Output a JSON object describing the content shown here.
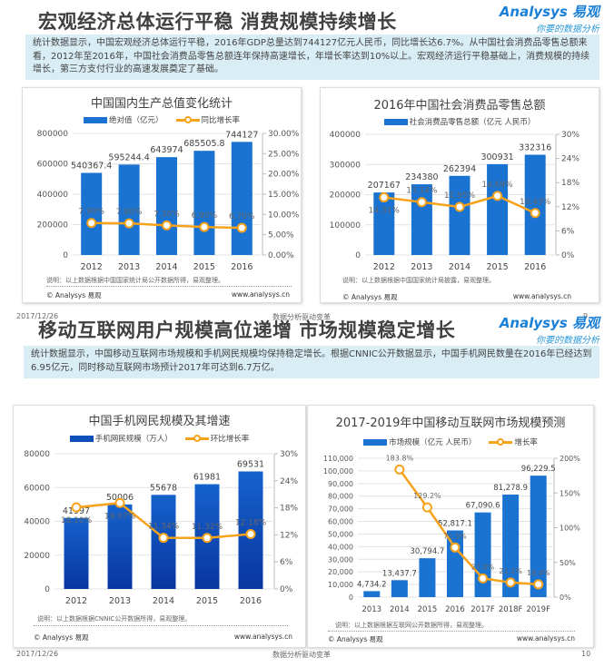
{
  "logo": {
    "name": "Analysys 易观",
    "tagline": "你要的数据分析"
  },
  "slides": [
    {
      "title": "宏观经济总体运行平稳  消费规模持续增长",
      "summary": "统计数据显示，中国宏观经济总体运行平稳，2016年GDP总量达到744127亿元人民币，同比增长达6.7%。从中国社会消费品零售总额来看，2012年至2016年，中国社会消费品零售总额连年保持高速增长，年增长率达到10%以上。宏观经济运行平稳基础上，消费规模的持续增长，第三方支付行业的高速发展奠定了基础。",
      "footer": {
        "date": "2017/12/26",
        "center": "数据分析驱动变革",
        "page": "9"
      }
    },
    {
      "title": "移动互联网用户规模高位递增 市场规模稳定增长",
      "summary": "统计数据显示，中国移动互联网市场规模和手机网民规模均保持稳定增长。根据CNNIC公开数据显示，中国手机网民数量在2016年已经达到6.95亿元，同时移动互联网市场预计2017年可达到6.7万亿。",
      "footer": {
        "date": "2017/12/26",
        "center": "数据分析驱动变革",
        "page": "10"
      }
    }
  ],
  "chart_data": [
    {
      "type": "bar+line",
      "title": "中国国内生产总值变化统计",
      "categories": [
        "2012",
        "2013",
        "2014",
        "2015",
        "2016"
      ],
      "bar_series": {
        "name": "绝对值（亿元）",
        "values": [
          540367.4,
          595244.4,
          643974,
          685505.8,
          744127
        ],
        "labels": [
          "540367.4",
          "595244.4",
          "643974",
          "685505.8",
          "744127"
        ]
      },
      "line_series": {
        "name": "同比增长率",
        "values": [
          7.9,
          7.8,
          7.3,
          6.9,
          6.7
        ],
        "labels": [
          "7.90%",
          "7.80%",
          "7.30%",
          "6.90%",
          "6.70%"
        ]
      },
      "y_left": {
        "range": [
          0,
          800000
        ],
        "ticks": [
          "0",
          "200000",
          "400000",
          "600000",
          "800000"
        ]
      },
      "y_right": {
        "range": [
          0,
          30
        ],
        "ticks": [
          "0.00%",
          "5.00%",
          "10.00%",
          "15.00%",
          "20.00%",
          "25.00%",
          "30.00%"
        ]
      },
      "bar_color": "#1a73d1",
      "line_color": "#f7a21b",
      "note": "说明：以上数据根据中国国家统计局公开数据所得，易观整理。",
      "copyright": "© Analysys 易观",
      "website": "www.analysys.cn"
    },
    {
      "type": "bar+line",
      "title": "2016年中国社会消费品零售总额",
      "categories": [
        "2012",
        "2013",
        "2014",
        "2015",
        "2016"
      ],
      "bar_series": {
        "name": "社会消费品零售总额（亿元 人民币）",
        "values": [
          207167,
          234380,
          262394,
          300931,
          332316
        ],
        "labels": [
          "207167",
          "234380",
          "262394",
          "300931",
          "332316"
        ]
      },
      "line_series": {
        "values": [
          14.31,
          13.14,
          11.95,
          14.69,
          10.43
        ],
        "labels": [
          "14.31%",
          "13.14%",
          "11.95%",
          "14.69%",
          "10.43%"
        ]
      },
      "y_left": {
        "range": [
          0,
          400000
        ],
        "ticks": [
          "0",
          "100000",
          "200000",
          "300000",
          "400000"
        ]
      },
      "y_right": {
        "range": [
          0,
          30
        ],
        "ticks": [
          "0%",
          "6%",
          "12%",
          "18%",
          "24%",
          "30%"
        ]
      },
      "bar_color": "#1a73d1",
      "line_color": "#f7a21b",
      "note": "说明：以上数据根据中国国家统计局披露，易观整理。",
      "copyright": "© Analysys 易观",
      "website": "www.analysys.cn"
    },
    {
      "type": "bar+line",
      "title": "中国手机网民规模及其增速",
      "categories": [
        "2012",
        "2013",
        "2014",
        "2015",
        "2016"
      ],
      "bar_series": {
        "name": "手机网民规模（万人）",
        "values": [
          41997,
          50006,
          55678,
          61981,
          69531
        ],
        "labels": [
          "41997",
          "50006",
          "55678",
          "61981",
          "69531"
        ]
      },
      "line_series": {
        "name": "环比增长率",
        "values": [
          18.1,
          19.07,
          11.34,
          11.32,
          12.18
        ],
        "labels": [
          "18.10%",
          "19.07%",
          "11.34%",
          "11.32%",
          "12.18%"
        ]
      },
      "y_left": {
        "range": [
          0,
          80000
        ],
        "ticks": [
          "0",
          "20000",
          "40000",
          "60000",
          "80000"
        ]
      },
      "y_right": {
        "range": [
          0,
          30
        ],
        "ticks": [
          "0%",
          "6%",
          "12%",
          "18%",
          "24%",
          "30%"
        ]
      },
      "bar_color": "#0d4fb8",
      "line_color": "#f7a21b",
      "note": "说明：以上数据根据CNNIC公开数据所得，易观整理。",
      "copyright": "© Analysys 易观",
      "website": "www.analysys.cn"
    },
    {
      "type": "bar+line",
      "title": "2017-2019年中国移动互联网市场规模预测",
      "categories": [
        "2013",
        "2014",
        "2015",
        "2016",
        "2017F",
        "2018F",
        "2019F"
      ],
      "bar_series": {
        "name": "市场规模（亿元 人民币）",
        "values": [
          4734.2,
          13437.7,
          30794.7,
          52817.1,
          67090.6,
          81278.9,
          96229.5
        ],
        "labels": [
          "4,734.2",
          "13,437.7",
          "30,794.7",
          "52,817.1",
          "67,090.6",
          "81,278.9",
          "96,229.5"
        ]
      },
      "line_series": {
        "name": "增长率",
        "values": [
          null,
          183.8,
          129.2,
          71.5,
          27.0,
          21.1,
          18.4
        ],
        "labels": [
          "",
          "183.8%",
          "129.2%",
          "71.5%",
          "27.0%",
          "21.1%",
          "18.4%"
        ]
      },
      "y_left": {
        "range": [
          0,
          110000
        ],
        "ticks": [
          "0",
          "10,000",
          "20,000",
          "30,000",
          "40,000",
          "50,000",
          "60,000",
          "70,000",
          "80,000",
          "90,000",
          "100,000",
          "110,000"
        ]
      },
      "y_right": {
        "range": [
          0,
          200
        ],
        "ticks": [
          "0%",
          "50%",
          "100%",
          "150%",
          "200%"
        ]
      },
      "bar_color": "#1a73d1",
      "line_color": "#f7a21b",
      "note": "说明：以上数据根据互联网公开数据所得，易观整理。",
      "copyright": "© Analysys 易观",
      "website": "www.analysys.cn"
    }
  ]
}
